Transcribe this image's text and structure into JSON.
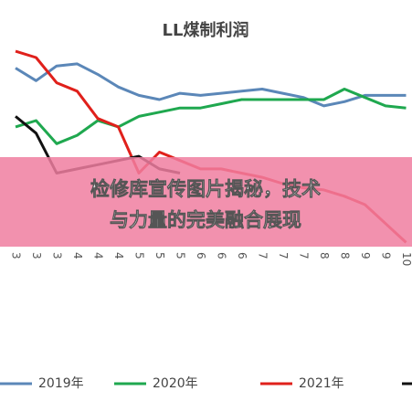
{
  "chart_data": {
    "type": "line",
    "title": "LL煤制利润",
    "categories": [
      "3",
      "3",
      "3",
      "4",
      "4",
      "4",
      "5",
      "5",
      "5",
      "6",
      "6",
      "6",
      "7",
      "7",
      "7",
      "8",
      "8",
      "9",
      "9",
      "10"
    ],
    "ylim": [
      0,
      100
    ],
    "series": [
      {
        "name": "2019年",
        "color": "#5b87b8",
        "values": [
          85,
          79,
          86,
          87,
          82,
          76,
          72,
          70,
          73,
          72,
          73,
          74,
          75,
          73,
          71,
          67,
          69,
          72,
          72,
          72
        ]
      },
      {
        "name": "2020年",
        "color": "#1fa84f",
        "values": [
          57,
          60,
          49,
          53,
          60,
          57,
          62,
          64,
          66,
          66,
          68,
          70,
          70,
          70,
          70,
          70,
          75,
          71,
          67,
          66
        ]
      },
      {
        "name": "2021年",
        "color": "#e0201b",
        "values": [
          93,
          90,
          78,
          74,
          61,
          57,
          35,
          45,
          41,
          37,
          37,
          35,
          33,
          30,
          28,
          27,
          24,
          20,
          11,
          2
        ]
      },
      {
        "color": "#111111",
        "values": [
          62,
          54,
          35,
          37,
          39,
          41,
          43,
          37,
          35,
          null,
          null,
          null,
          null,
          null,
          null,
          null,
          null,
          null,
          null,
          null
        ]
      }
    ]
  },
  "overlay": {
    "lines": [
      "检修库宣传图片揭秘，技术",
      "与力量的完美融合展现"
    ]
  }
}
